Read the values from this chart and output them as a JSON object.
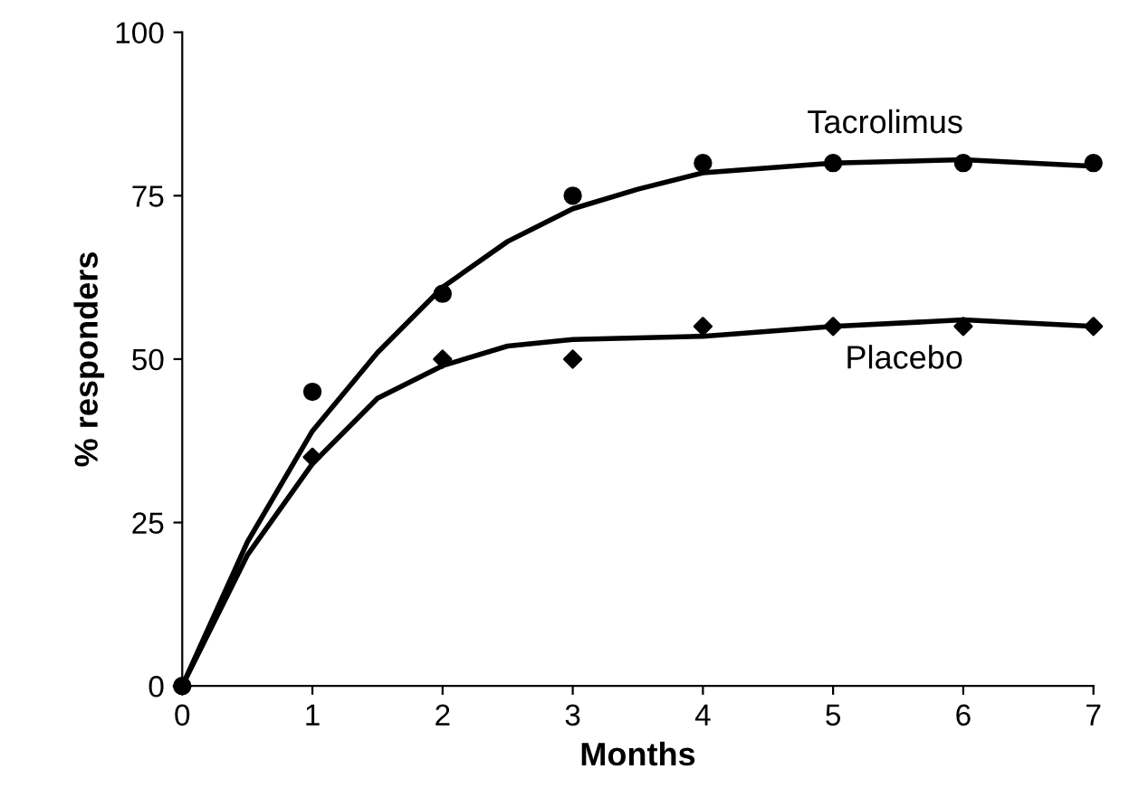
{
  "chart_data": {
    "type": "scatter",
    "xlabel": "Months",
    "ylabel": "% responders",
    "xlim": [
      0,
      7
    ],
    "ylim": [
      0,
      100
    ],
    "xticks": [
      0,
      1,
      2,
      3,
      4,
      5,
      6,
      7
    ],
    "yticks": [
      0,
      25,
      50,
      75,
      100
    ],
    "grid": false,
    "legend": false,
    "series": [
      {
        "name": "Tacrolimus",
        "type": "line",
        "color": "#000000",
        "marker": "none",
        "x": [
          0,
          0.5,
          1,
          1.5,
          2,
          2.5,
          3,
          3.5,
          4,
          5,
          6,
          7
        ],
        "values": [
          0,
          22,
          39,
          51,
          61,
          68,
          73,
          76,
          78.5,
          80,
          80.5,
          79.5
        ]
      },
      {
        "color": "#000000",
        "marker": "circle",
        "x": [
          0,
          1,
          2,
          3,
          4,
          5,
          6,
          7
        ],
        "values": [
          0,
          45,
          60,
          75,
          80,
          80,
          80,
          80
        ]
      },
      {
        "name": "Placebo",
        "type": "line",
        "color": "#000000",
        "marker": "none",
        "x": [
          0,
          0.5,
          1,
          1.5,
          2,
          2.5,
          3,
          4,
          5,
          6,
          7
        ],
        "values": [
          0,
          20,
          34,
          44,
          49,
          52,
          53,
          53.5,
          55,
          56,
          55
        ]
      },
      {
        "color": "#000000",
        "marker": "diamond",
        "x": [
          0,
          1,
          2,
          3,
          4,
          5,
          6,
          7
        ],
        "values": [
          0,
          35,
          50,
          50,
          55,
          55,
          55,
          55
        ]
      }
    ]
  }
}
